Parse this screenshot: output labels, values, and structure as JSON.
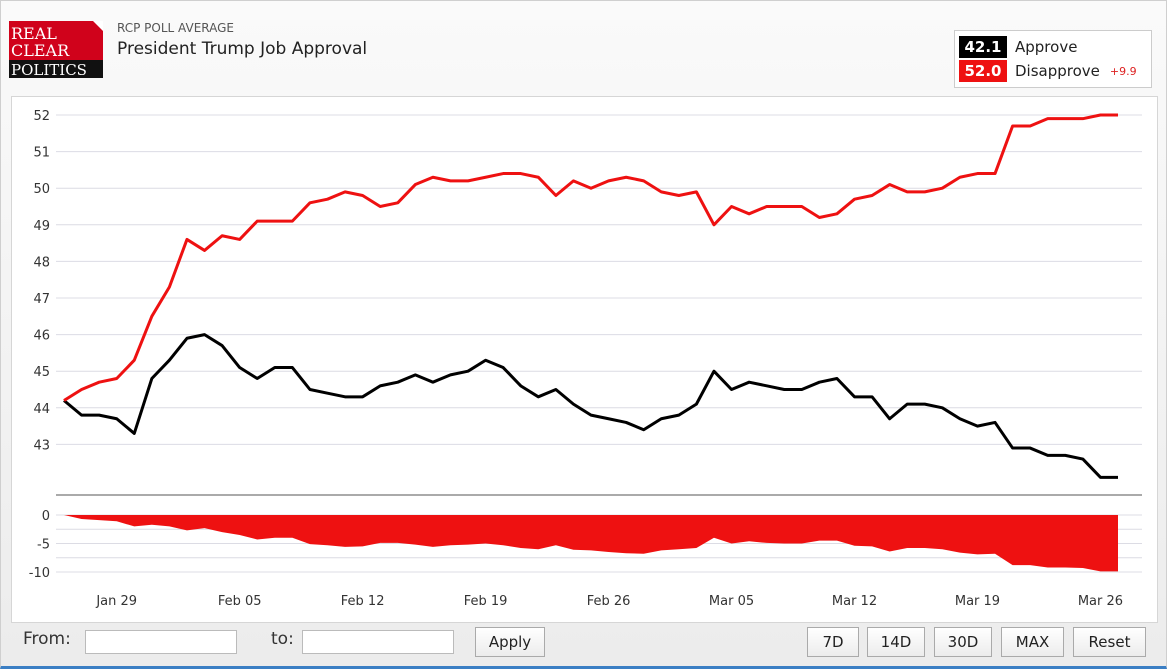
{
  "header": {
    "logo_text": [
      "REAL",
      "CLEAR",
      "POLITICS"
    ],
    "subtitle": "RCP POLL AVERAGE",
    "title": "President Trump Job Approval"
  },
  "legend": {
    "approve_value": "42.1",
    "approve_label": "Approve",
    "disapprove_value": "52.0",
    "disapprove_label": "Disapprove",
    "spread": "+9.9"
  },
  "colors": {
    "approve": "#000000",
    "disapprove": "#ee1111",
    "brand_red": "#d0021b"
  },
  "footer": {
    "from_label": "From:",
    "to_label": "to:",
    "from_value": "",
    "to_value": "",
    "apply": "Apply",
    "ranges": [
      "7D",
      "14D",
      "30D",
      "MAX",
      "Reset"
    ]
  },
  "chart_data": {
    "type": "line",
    "x_start": "Jan 26",
    "x_end": "Mar 27",
    "x_ticks": [
      "Jan 29",
      "Feb 05",
      "Feb 12",
      "Feb 19",
      "Feb 26",
      "Mar 05",
      "Mar 12",
      "Mar 19",
      "Mar 26"
    ],
    "y_ticks": [
      43,
      44,
      45,
      46,
      47,
      48,
      49,
      50,
      51,
      52
    ],
    "ylim": [
      42,
      52.4
    ],
    "spread_ticks": [
      0,
      -5,
      -10
    ],
    "spread_ylim": [
      -11,
      1
    ],
    "grid": true,
    "series": [
      {
        "name": "Approve",
        "color": "#000000",
        "values": [
          44.2,
          43.8,
          43.8,
          43.7,
          43.3,
          44.8,
          45.3,
          45.9,
          46.0,
          45.7,
          45.1,
          44.8,
          45.1,
          45.1,
          44.5,
          44.4,
          44.3,
          44.3,
          44.6,
          44.7,
          44.9,
          44.7,
          44.9,
          45.0,
          45.3,
          45.1,
          44.6,
          44.3,
          44.5,
          44.1,
          43.8,
          43.7,
          43.6,
          43.4,
          43.7,
          43.8,
          44.1,
          45.0,
          44.5,
          44.7,
          44.6,
          44.5,
          44.5,
          44.7,
          44.8,
          44.3,
          44.3,
          43.7,
          44.1,
          44.1,
          44.0,
          43.7,
          43.5,
          43.6,
          42.9,
          42.9,
          42.7,
          42.7,
          42.6,
          42.1,
          42.1
        ]
      },
      {
        "name": "Disapprove",
        "color": "#ee1111",
        "values": [
          44.2,
          44.5,
          44.7,
          44.8,
          45.3,
          46.5,
          47.3,
          48.6,
          48.3,
          48.7,
          48.6,
          49.1,
          49.1,
          49.1,
          49.6,
          49.7,
          49.9,
          49.8,
          49.5,
          49.6,
          50.1,
          50.3,
          50.2,
          50.2,
          50.3,
          50.4,
          50.4,
          50.3,
          49.8,
          50.2,
          50.0,
          50.2,
          50.3,
          50.2,
          49.9,
          49.8,
          49.9,
          49.0,
          49.5,
          49.3,
          49.5,
          49.5,
          49.5,
          49.2,
          49.3,
          49.7,
          49.8,
          50.1,
          49.9,
          49.9,
          50.0,
          50.3,
          50.4,
          50.4,
          51.7,
          51.7,
          51.9,
          51.9,
          51.9,
          52.0,
          52.0
        ]
      }
    ]
  }
}
